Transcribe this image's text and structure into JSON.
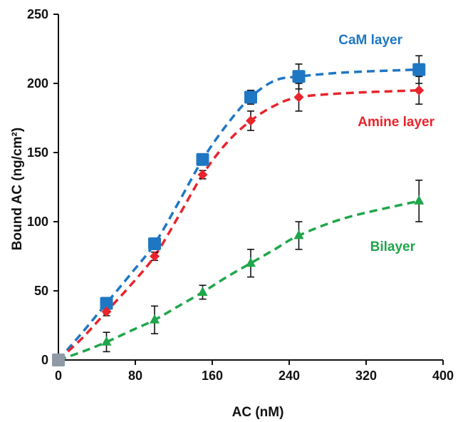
{
  "chart_data": {
    "type": "scatter",
    "title": "",
    "xlabel": "AC (nM)",
    "ylabel": "Bound AC (ng/cm²)",
    "xlim": [
      0,
      400
    ],
    "ylim": [
      0,
      250
    ],
    "xticks": [
      0,
      80,
      160,
      240,
      320,
      400
    ],
    "yticks": [
      0,
      50,
      100,
      150,
      200,
      250
    ],
    "grid": false,
    "legend": "inline labels",
    "series": [
      {
        "name": "CaM  layer",
        "color": "#1f77c4",
        "marker": "square",
        "x": [
          0,
          50,
          100,
          150,
          200,
          250,
          375
        ],
        "y": [
          0,
          41,
          84,
          145,
          190,
          205,
          210
        ],
        "err": [
          0,
          4,
          4,
          4,
          5,
          9,
          10
        ],
        "fit": [
          [
            0,
            0
          ],
          [
            25,
            20
          ],
          [
            50,
            41
          ],
          [
            75,
            62
          ],
          [
            100,
            84
          ],
          [
            125,
            114
          ],
          [
            150,
            145
          ],
          [
            175,
            170
          ],
          [
            200,
            190
          ],
          [
            225,
            202
          ],
          [
            250,
            205
          ],
          [
            300,
            208
          ],
          [
            375,
            210
          ]
        ]
      },
      {
        "name": "Amine layer",
        "color": "#e8242c",
        "marker": "diamond",
        "x": [
          0,
          50,
          100,
          150,
          200,
          250,
          375
        ],
        "y": [
          0,
          35,
          75,
          134,
          173,
          190,
          195
        ],
        "err": [
          0,
          3,
          3,
          3,
          7,
          10,
          10
        ],
        "fit": [
          [
            0,
            0
          ],
          [
            25,
            16
          ],
          [
            50,
            35
          ],
          [
            75,
            54
          ],
          [
            100,
            75
          ],
          [
            125,
            104
          ],
          [
            150,
            134
          ],
          [
            175,
            157
          ],
          [
            200,
            173
          ],
          [
            225,
            184
          ],
          [
            250,
            190
          ],
          [
            300,
            193
          ],
          [
            375,
            195
          ]
        ]
      },
      {
        "name": "Bilayer",
        "color": "#1fa64a",
        "marker": "triangle",
        "x": [
          0,
          50,
          100,
          150,
          200,
          250,
          375
        ],
        "y": [
          0,
          13,
          29,
          49,
          70,
          90,
          115
        ],
        "err": [
          0,
          7,
          10,
          5,
          10,
          10,
          15
        ],
        "fit": [
          [
            0,
            0
          ],
          [
            25,
            6
          ],
          [
            50,
            13
          ],
          [
            75,
            21
          ],
          [
            100,
            29
          ],
          [
            125,
            39
          ],
          [
            150,
            49
          ],
          [
            175,
            60
          ],
          [
            200,
            70
          ],
          [
            225,
            80
          ],
          [
            250,
            90
          ],
          [
            300,
            103
          ],
          [
            375,
            115
          ]
        ]
      }
    ],
    "annotations": [
      {
        "text": "CaM  layer",
        "color": "#1f77c4"
      },
      {
        "text": "Amine layer",
        "color": "#e8242c"
      },
      {
        "text": "Bilayer",
        "color": "#1fa64a"
      }
    ]
  }
}
